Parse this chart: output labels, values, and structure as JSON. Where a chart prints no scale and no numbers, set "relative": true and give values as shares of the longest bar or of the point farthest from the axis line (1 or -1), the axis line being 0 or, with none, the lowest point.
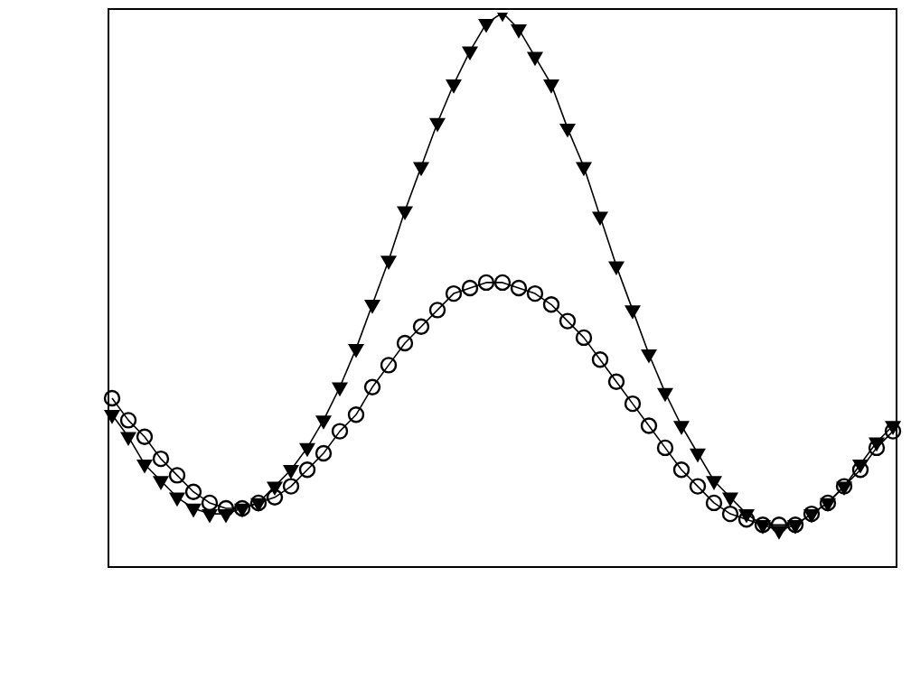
{
  "chart_data": {
    "type": "line",
    "relative": true,
    "grid": false,
    "legend": false,
    "tick_labels": false,
    "categories": [
      null,
      null,
      null,
      null,
      null,
      null,
      null,
      null,
      null,
      null,
      null,
      null,
      null,
      null,
      null,
      null,
      null,
      null,
      null,
      null,
      null,
      null,
      null,
      null,
      null,
      null,
      null,
      null,
      null,
      null,
      null,
      null,
      null,
      null,
      null,
      null,
      null,
      null,
      null,
      null,
      null,
      null,
      null,
      null,
      null,
      null,
      null,
      null,
      null
    ],
    "series": [
      {
        "color": "#000000",
        "marker": "triangle",
        "values": [
          0.27,
          0.23,
          0.18,
          0.15,
          0.12,
          0.1,
          0.09,
          0.09,
          0.1,
          0.11,
          0.14,
          0.17,
          0.21,
          0.26,
          0.32,
          0.39,
          0.47,
          0.55,
          0.64,
          0.72,
          0.8,
          0.87,
          0.93,
          0.98,
          1,
          0.97,
          0.92,
          0.87,
          0.79,
          0.72,
          0.63,
          0.54,
          0.46,
          0.38,
          0.31,
          0.25,
          0.2,
          0.15,
          0.12,
          0.09,
          0.07,
          0.06,
          0.07,
          0.09,
          0.11,
          0.14,
          0.18,
          0.22,
          0.25
        ]
      },
      {
        "color": "#000000",
        "marker": "circle",
        "values": [
          0.3,
          0.26,
          0.23,
          0.19,
          0.16,
          0.13,
          0.11,
          0.1,
          0.1,
          0.11,
          0.12,
          0.14,
          0.17,
          0.2,
          0.24,
          0.27,
          0.32,
          0.36,
          0.4,
          0.43,
          0.46,
          0.49,
          0.5,
          0.51,
          0.51,
          0.5,
          0.49,
          0.47,
          0.44,
          0.41,
          0.37,
          0.33,
          0.29,
          0.25,
          0.21,
          0.17,
          0.14,
          0.11,
          0.09,
          0.08,
          0.07,
          0.07,
          0.07,
          0.09,
          0.11,
          0.14,
          0.17,
          0.21,
          0.24
        ]
      }
    ]
  }
}
